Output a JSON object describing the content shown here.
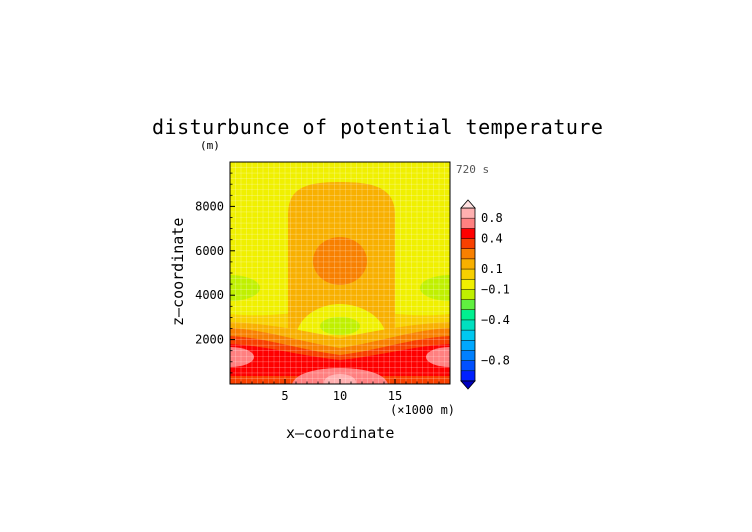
{
  "chart_data": {
    "type": "heatmap",
    "title": "disturbunce of potential temperature",
    "xlabel": "x—coordinate",
    "ylabel": "z—coordinate",
    "y_unit_label": "(m)",
    "x_unit_label": "(×1000 m)",
    "time_label": "720 s",
    "xlim": [
      0,
      20
    ],
    "ylim": [
      0,
      10000
    ],
    "x_ticks": [
      5,
      10,
      15
    ],
    "x_tick_labels": [
      "5",
      "10",
      "15"
    ],
    "y_ticks": [
      2000,
      4000,
      6000,
      8000
    ],
    "y_tick_labels": [
      "2000",
      "4000",
      "6000",
      "8000"
    ],
    "grid": true,
    "colorbar": {
      "position": "right",
      "levels": [
        -1.0,
        -0.9,
        -0.8,
        -0.7,
        -0.6,
        -0.5,
        -0.4,
        -0.3,
        -0.2,
        -0.1,
        0.0,
        0.1,
        0.2,
        0.3,
        0.4,
        0.6,
        0.8,
        1.0
      ],
      "colors": [
        "#0020ff",
        "#0050ff",
        "#0080ff",
        "#00a8ff",
        "#00c8f0",
        "#00e0c0",
        "#00f090",
        "#60f040",
        "#c0f000",
        "#f0f000",
        "#f8d000",
        "#f8b000",
        "#f88000",
        "#f84000",
        "#ff0000",
        "#ff8080",
        "#ffb0b0"
      ],
      "tick_values": [
        -0.8,
        -0.4,
        -0.1,
        0.1,
        0.4,
        0.8
      ],
      "tick_labels": [
        "−0.8",
        "−0.4",
        "−0.1",
        "0.1",
        "0.4",
        "0.8"
      ],
      "extend": "both"
    },
    "field_features": [
      {
        "feature": "warm core maximum",
        "x": 10,
        "z": 5500,
        "value": 0.45
      },
      {
        "feature": "warm column",
        "x_range": [
          6,
          14
        ],
        "z_range": [
          3500,
          9000
        ],
        "value": 0.25
      },
      {
        "feature": "cool pocket",
        "x": 10,
        "z": 2600,
        "value": -0.15
      },
      {
        "feature": "cool pocket",
        "x": 0.5,
        "z": 4300,
        "value": -0.15
      },
      {
        "feature": "cool pocket",
        "x": 19.5,
        "z": 4300,
        "value": -0.15
      },
      {
        "feature": "warm surface layer",
        "z_range": [
          0,
          2000
        ],
        "value": 0.5
      },
      {
        "feature": "surface maximum",
        "x": 10,
        "z": 200,
        "value": 0.85
      },
      {
        "feature": "surface maximum",
        "x": 0.8,
        "z": 1200,
        "value": 0.8
      },
      {
        "feature": "surface maximum",
        "x": 19.2,
        "z": 1200,
        "value": 0.8
      }
    ]
  }
}
